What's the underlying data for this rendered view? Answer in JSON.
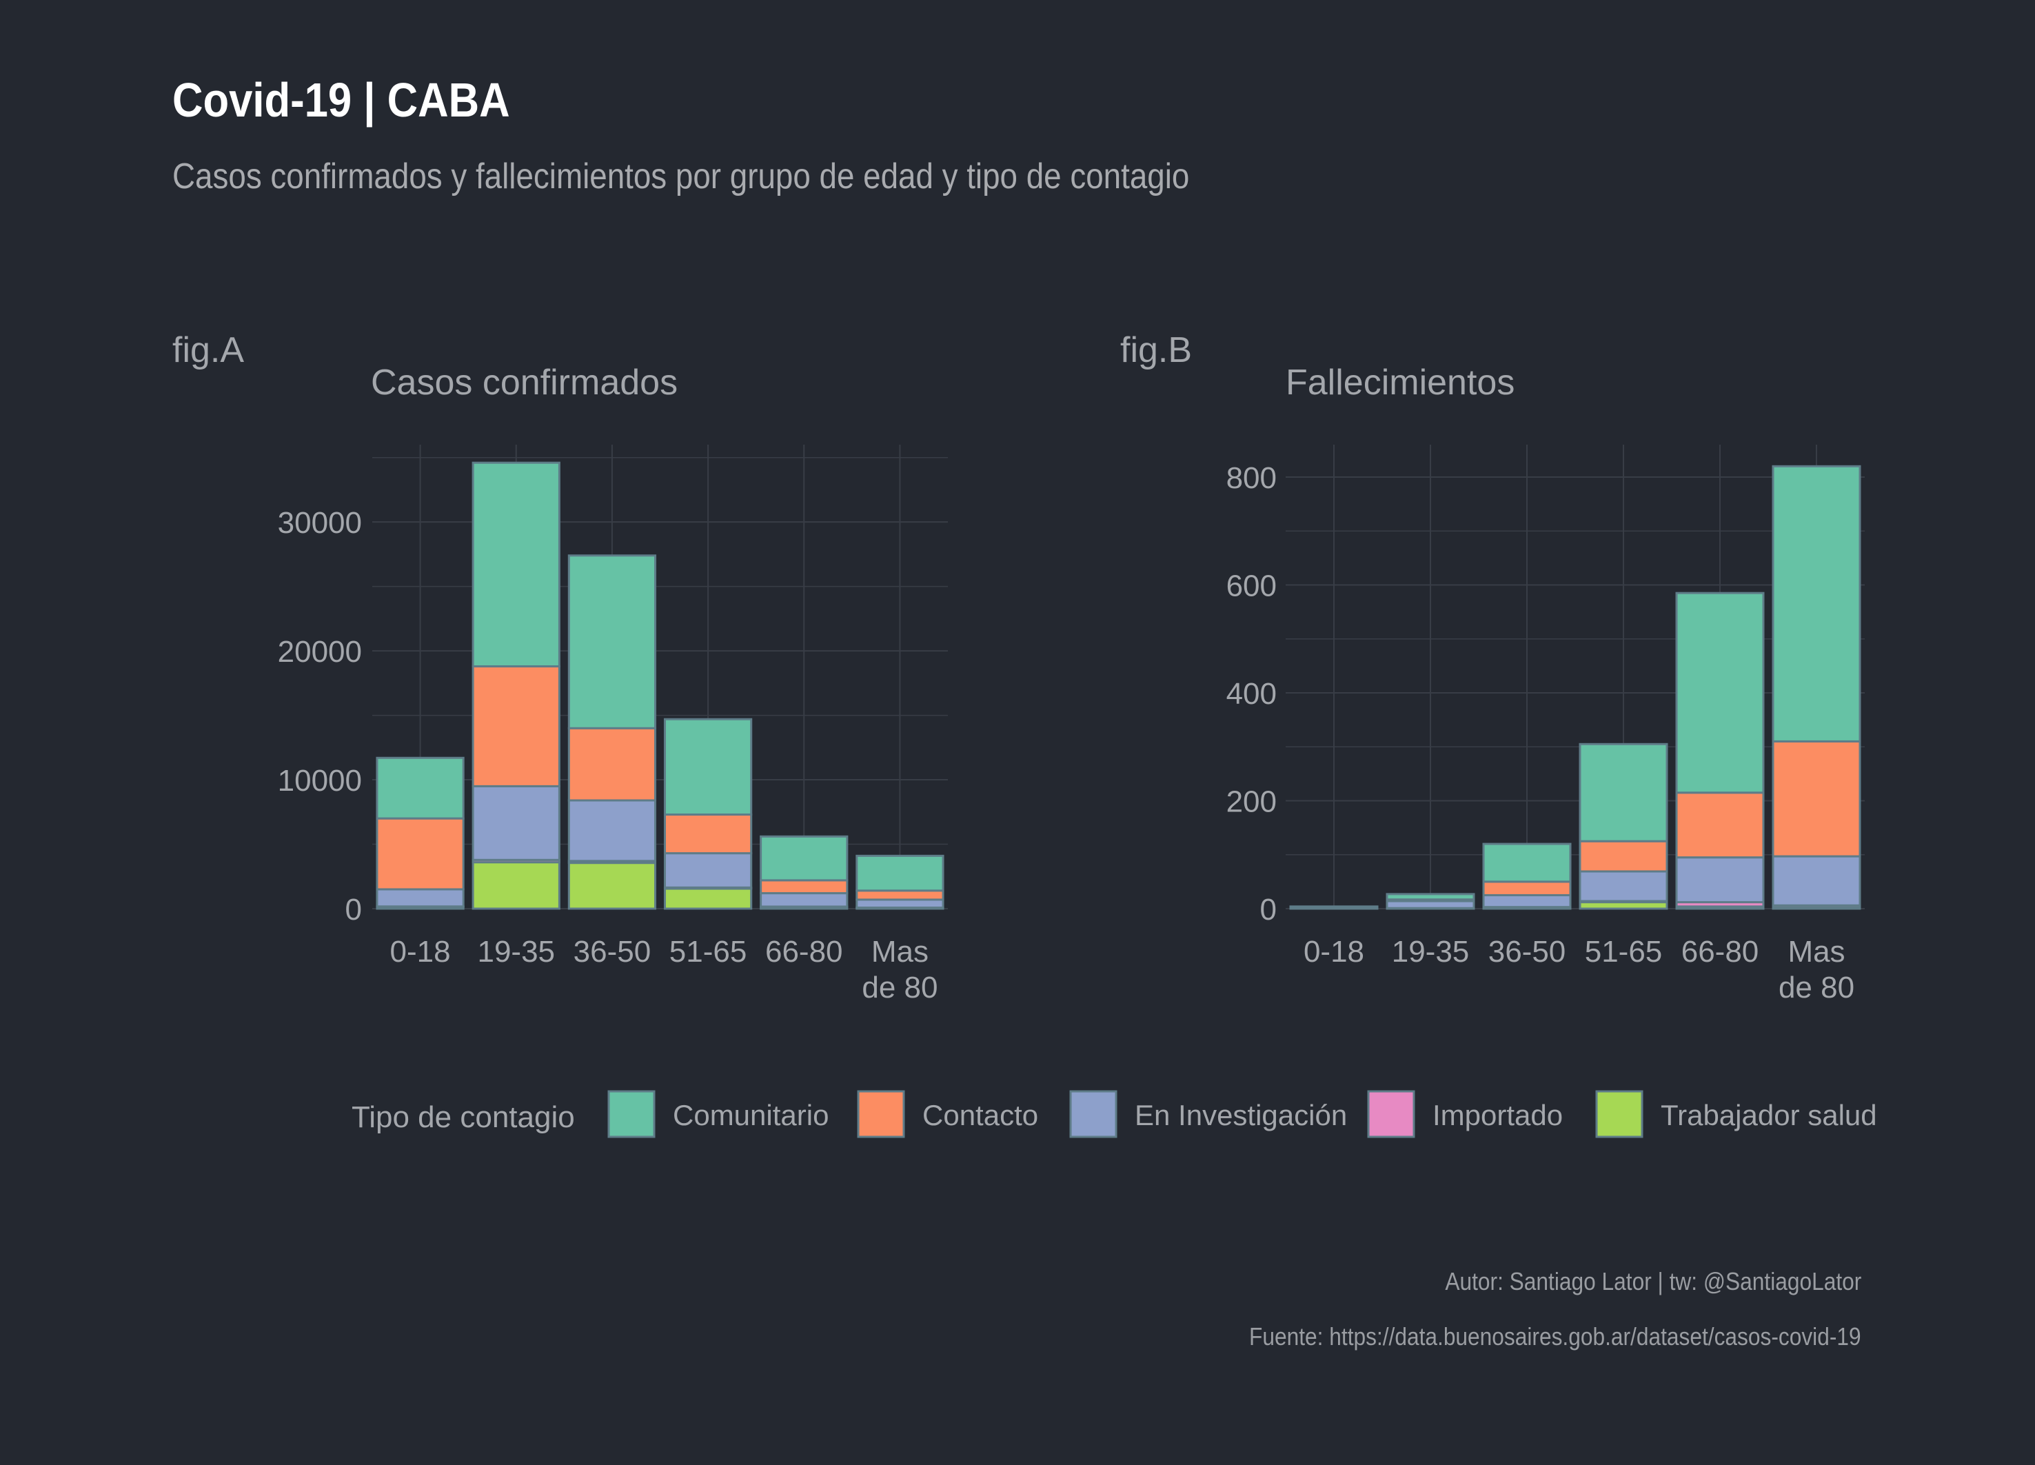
{
  "header": {
    "title": "Covid-19 | CABA",
    "subtitle": "Casos confirmados y fallecimientos por grupo de edad y tipo de contagio"
  },
  "legend": {
    "title": "Tipo de contagio"
  },
  "caption": {
    "author": "Autor: Santiago Lator | tw: @SantiagoLator",
    "source": "Fuente: https://data.buenosaires.gob.ar/dataset/casos-covid-19"
  },
  "style": {
    "background": "#242830",
    "grid": "#383d46",
    "bar_outline": "#5e7c88",
    "series_colors": {
      "Comunitario": "#66c2a5",
      "Contacto": "#fc8d62",
      "En Investigación": "#8da0cb",
      "Importado": "#e78ac3",
      "Trabajador salud": "#a6d854"
    }
  },
  "chart_data": [
    {
      "type": "bar",
      "stacked": true,
      "tag": "fig.A",
      "title": "Casos confirmados",
      "xlabel": "",
      "ylabel": "",
      "categories": [
        "0-18",
        "19-35",
        "36-50",
        "51-65",
        "66-80",
        "Mas de 80"
      ],
      "ylim": [
        0,
        36000
      ],
      "yticks": [
        0,
        10000,
        20000,
        30000
      ],
      "grid": true,
      "series": [
        {
          "name": "Trabajador salud",
          "values": [
            150,
            3600,
            3550,
            1550,
            120,
            60
          ]
        },
        {
          "name": "Importado",
          "values": [
            20,
            180,
            150,
            90,
            40,
            20
          ]
        },
        {
          "name": "En Investigación",
          "values": [
            1330,
            5720,
            4700,
            2660,
            1040,
            620
          ]
        },
        {
          "name": "Contacto",
          "values": [
            5500,
            9300,
            5600,
            3000,
            1000,
            700
          ]
        },
        {
          "name": "Comunitario",
          "values": [
            4700,
            15800,
            13400,
            7400,
            3400,
            2700
          ]
        }
      ]
    },
    {
      "type": "bar",
      "stacked": true,
      "tag": "fig.B",
      "title": "Fallecimientos",
      "xlabel": "",
      "ylabel": "",
      "categories": [
        "0-18",
        "19-35",
        "36-50",
        "51-65",
        "66-80",
        "Mas de 80"
      ],
      "ylim": [
        0,
        860
      ],
      "yticks": [
        0,
        200,
        400,
        600,
        800
      ],
      "grid": true,
      "series": [
        {
          "name": "Trabajador salud",
          "values": [
            0,
            1,
            2,
            12,
            4,
            2
          ]
        },
        {
          "name": "Importado",
          "values": [
            0,
            0,
            1,
            2,
            8,
            4
          ]
        },
        {
          "name": "En Investigación",
          "values": [
            3,
            13,
            22,
            55,
            83,
            91
          ]
        },
        {
          "name": "Contacto",
          "values": [
            0,
            3,
            25,
            56,
            120,
            213
          ]
        },
        {
          "name": "Comunitario",
          "values": [
            1,
            10,
            70,
            180,
            370,
            510
          ]
        }
      ]
    }
  ]
}
